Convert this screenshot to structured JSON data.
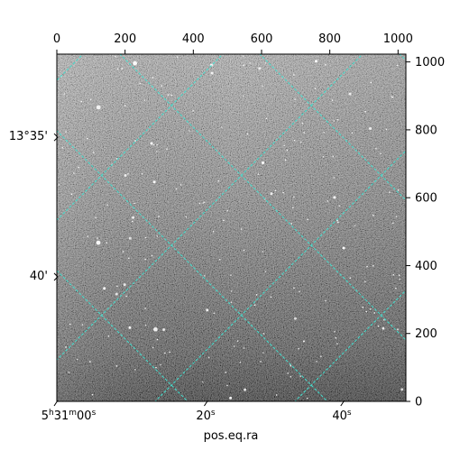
{
  "chart_data": {
    "type": "image",
    "xlabel": "pos.eq.ra",
    "pixel_axes": {
      "x": {
        "range": [
          0,
          1023
        ],
        "ticks": [
          0,
          200,
          400,
          600,
          800,
          1000
        ],
        "labels": [
          "0",
          "200",
          "400",
          "600",
          "800",
          "1000"
        ]
      },
      "y": {
        "range": [
          0,
          1023
        ],
        "ticks": [
          0,
          200,
          400,
          600,
          800,
          1000
        ],
        "labels": [
          "0",
          "200",
          "400",
          "600",
          "800",
          "1000"
        ]
      }
    },
    "world_axes": {
      "ra": {
        "ticks": [
          {
            "px": 0,
            "py": 0,
            "label_parts": [
              "5",
              "h",
              "31",
              "m",
              "00",
              "s"
            ]
          },
          {
            "px": 440,
            "py": 0,
            "label_parts": [
              "20",
              "s"
            ]
          },
          {
            "px": 840,
            "py": 0,
            "label_parts": [
              "40",
              "s"
            ]
          }
        ]
      },
      "dec": {
        "ticks": [
          {
            "px": 0,
            "py": 778,
            "label": "13°35'"
          },
          {
            "px": 0,
            "py": 367,
            "label": "40'"
          }
        ]
      }
    },
    "grid": true,
    "grid_color": "#40e0d0",
    "image_colormap": "gray"
  }
}
